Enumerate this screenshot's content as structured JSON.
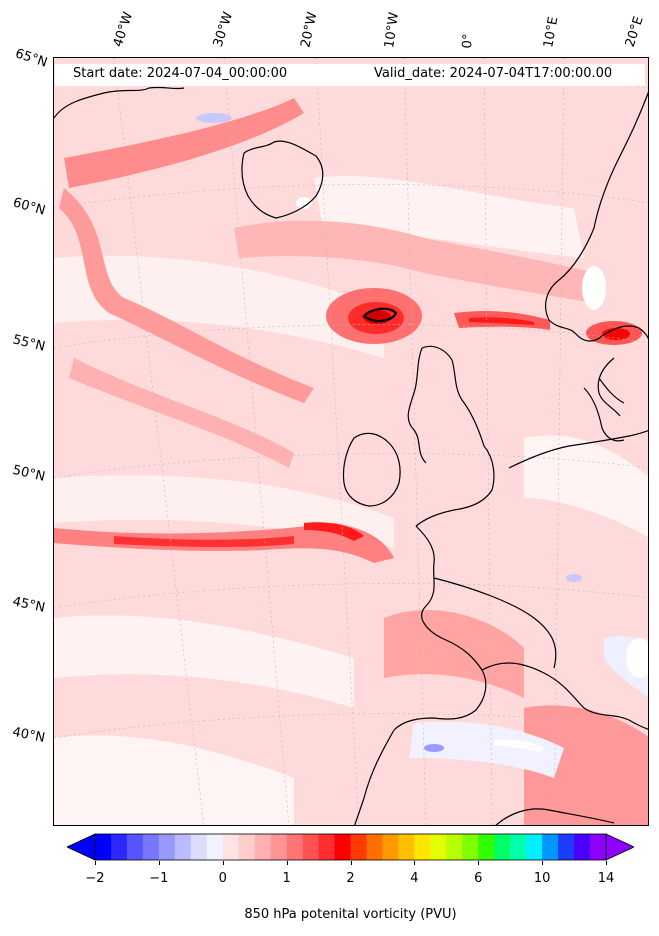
{
  "header": {
    "start_date": "Start date: 2024-07-04_00:00:00",
    "valid_date": "Valid_date: 2024-07-04T17:00:00.00"
  },
  "longitude_labels": [
    "40°W",
    "30°W",
    "20°W",
    "10°W",
    "0°",
    "10°E",
    "20°E"
  ],
  "latitude_labels": [
    "65°N",
    "60°N",
    "55°N",
    "50°N",
    "45°N",
    "40°N"
  ],
  "colorbar": {
    "label": "850 hPa potenital vorticity (PVU)",
    "ticks": [
      "−2",
      "−1",
      "0",
      "1",
      "2",
      "4",
      "6",
      "10",
      "14"
    ],
    "colors": [
      "#0000ff",
      "#2a2aff",
      "#5555ff",
      "#7777ff",
      "#9999ff",
      "#bbbbff",
      "#dcdcff",
      "#f2f2ff",
      "#ffe3e3",
      "#ffcccc",
      "#ffb0b0",
      "#ff9494",
      "#ff7575",
      "#ff5252",
      "#ff2e2e",
      "#ff0000",
      "#ff3a00",
      "#ff6f00",
      "#ff9900",
      "#ffc000",
      "#ffe600",
      "#e4ff00",
      "#b5ff00",
      "#7dff00",
      "#30ff00",
      "#00ff66",
      "#00ffaa",
      "#00f0ff",
      "#0096ff",
      "#1e3cff",
      "#4a00ff",
      "#8e00ff"
    ]
  }
}
